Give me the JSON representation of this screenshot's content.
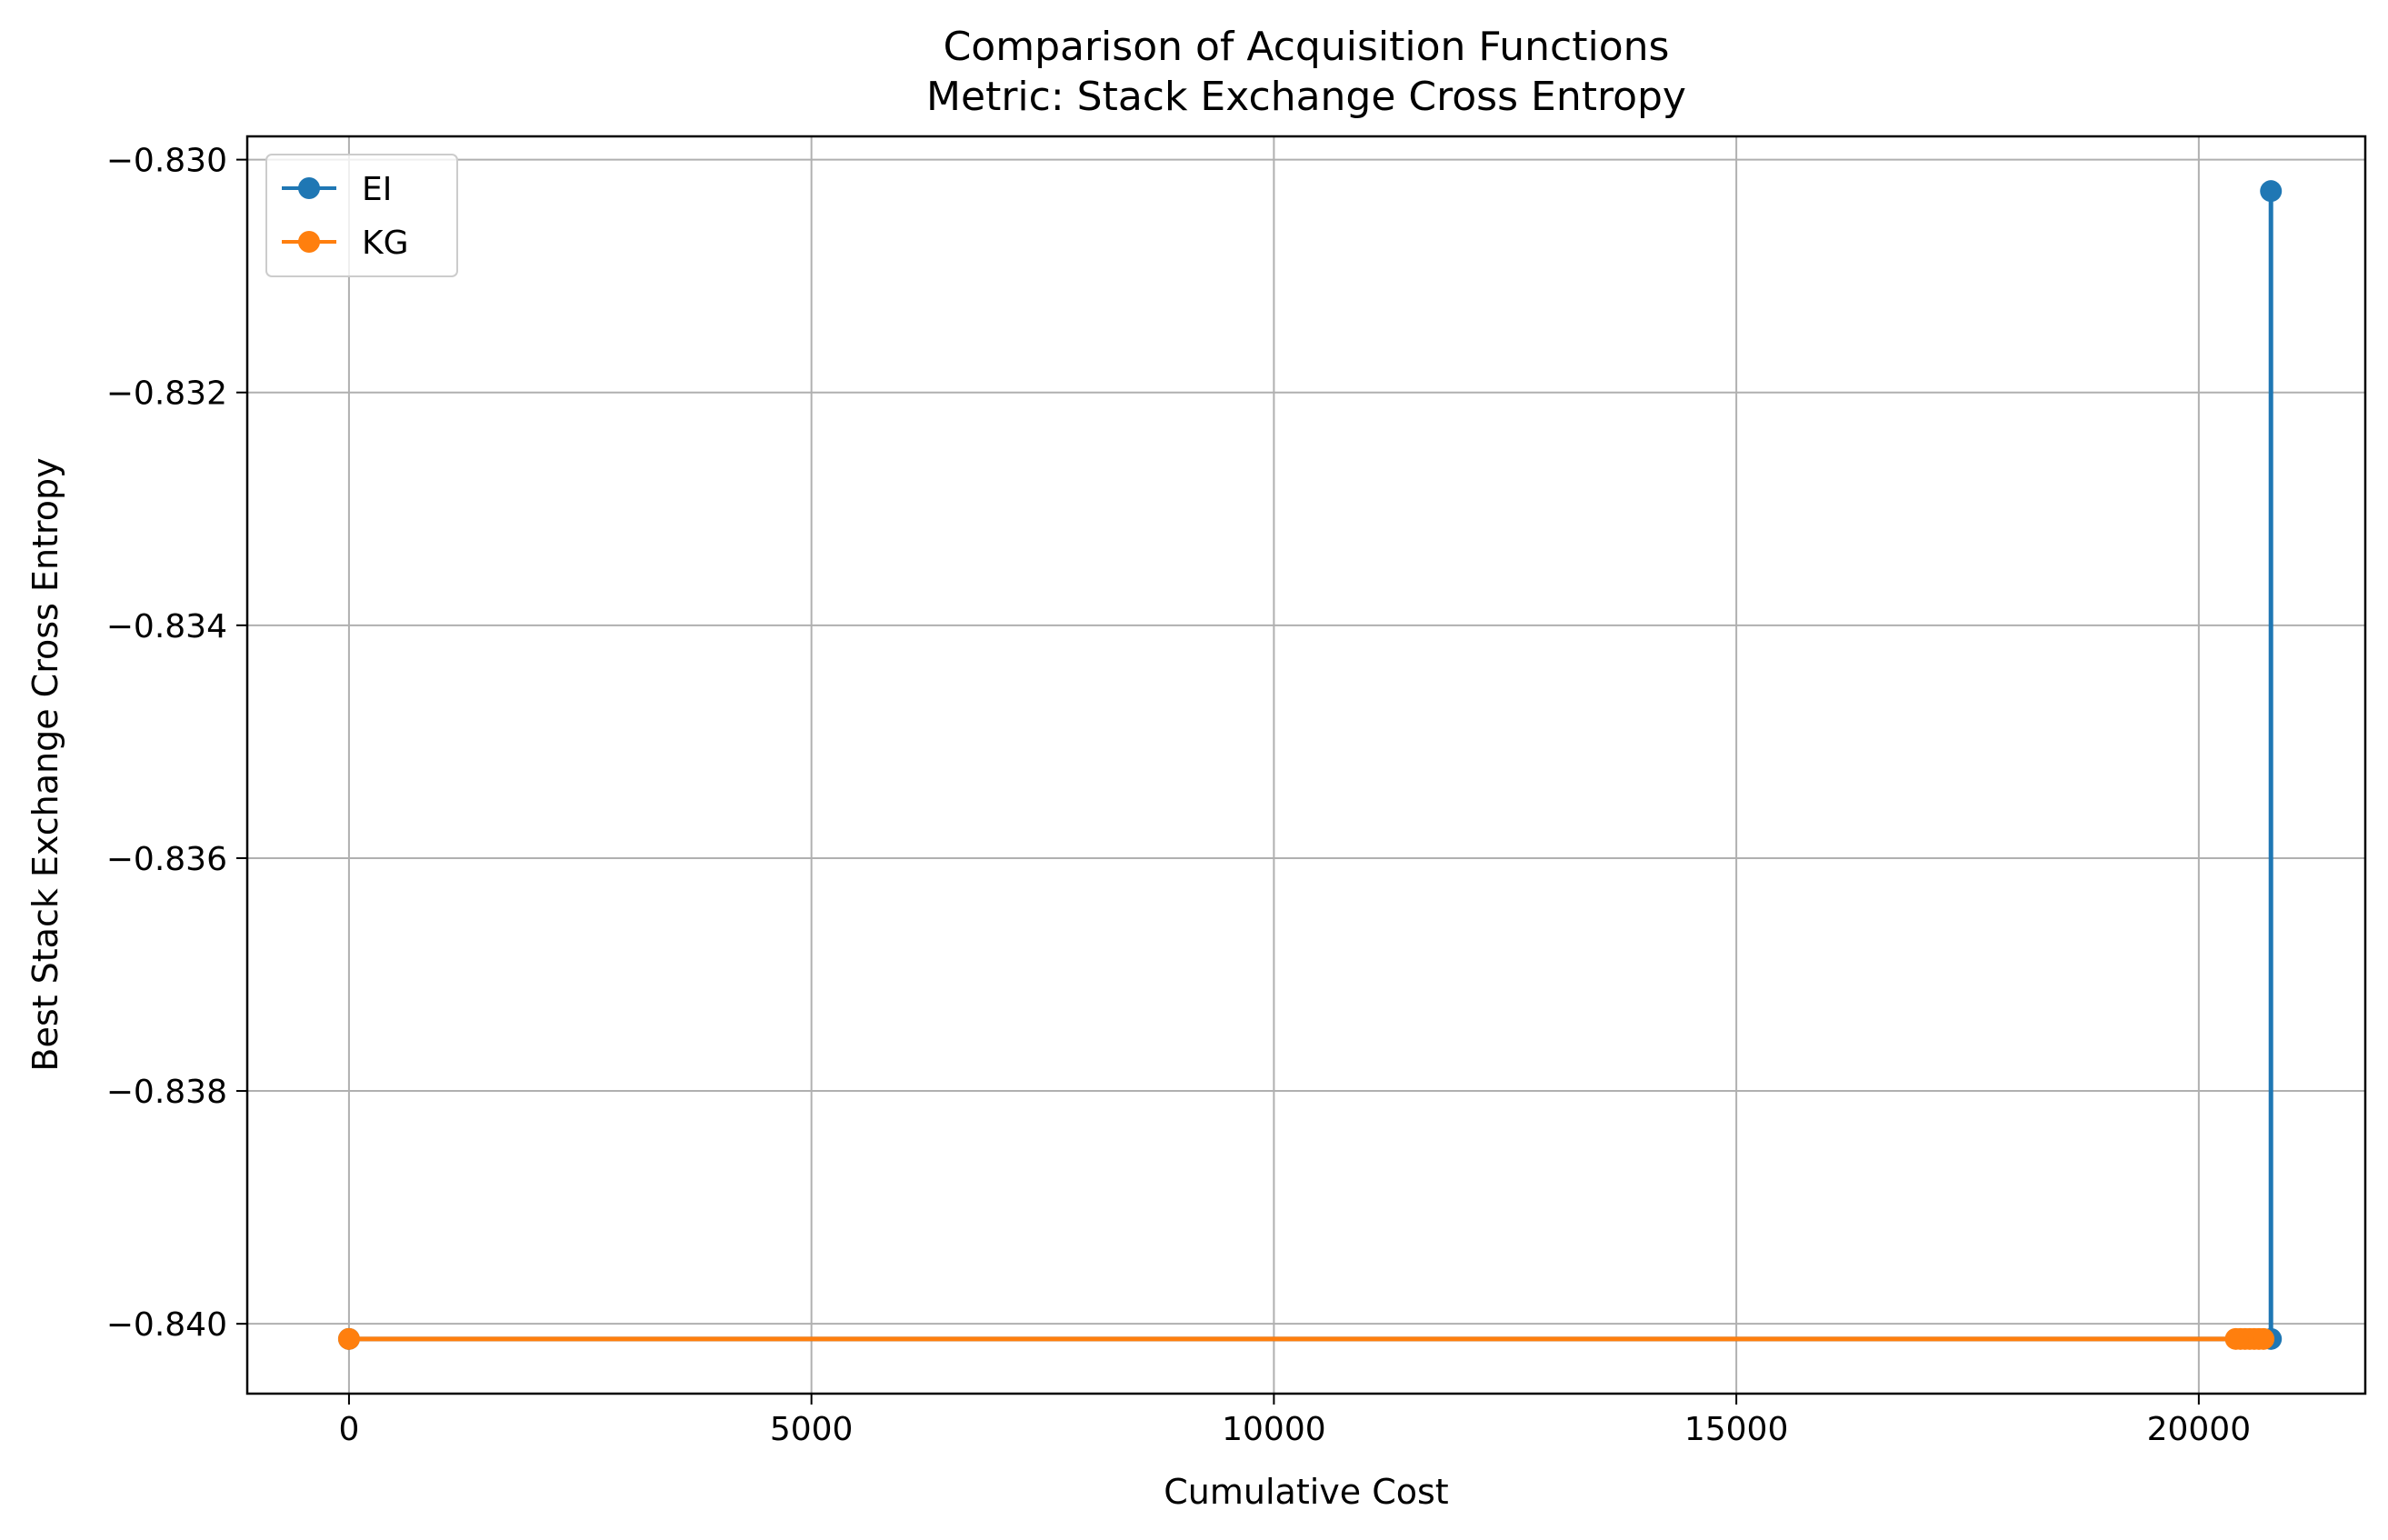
{
  "chart_data": {
    "type": "line",
    "title": "Comparison of Acquisition Functions",
    "subtitle": "Metric: Stack Exchange Cross Entropy",
    "xlabel": "Cumulative Cost",
    "ylabel": "Best Stack Exchange Cross Entropy",
    "xlim": [
      -1100,
      21800
    ],
    "ylim": [
      -0.8406,
      -0.8298
    ],
    "xticks": [
      0,
      5000,
      10000,
      15000,
      20000
    ],
    "xtick_labels": [
      "0",
      "5000",
      "10000",
      "15000",
      "20000"
    ],
    "yticks": [
      -0.83,
      -0.832,
      -0.834,
      -0.836,
      -0.838,
      -0.84
    ],
    "ytick_labels": [
      "−0.830",
      "−0.832",
      "−0.834",
      "−0.836",
      "−0.838",
      "−0.840"
    ],
    "grid": true,
    "legend_position": "top-left",
    "series": [
      {
        "name": "EI",
        "color": "#1f77b4",
        "marker": "circle",
        "points": [
          [
            0,
            -0.84013
          ],
          [
            20780,
            -0.84013
          ],
          [
            20780,
            -0.83027
          ]
        ]
      },
      {
        "name": "KG",
        "color": "#ff7f0e",
        "marker": "circle",
        "points": [
          [
            0,
            -0.84013
          ],
          [
            20400,
            -0.84013
          ],
          [
            20450,
            -0.84013
          ],
          [
            20500,
            -0.84013
          ],
          [
            20550,
            -0.84013
          ],
          [
            20600,
            -0.84013
          ],
          [
            20650,
            -0.84013
          ],
          [
            20700,
            -0.84013
          ]
        ]
      }
    ]
  }
}
